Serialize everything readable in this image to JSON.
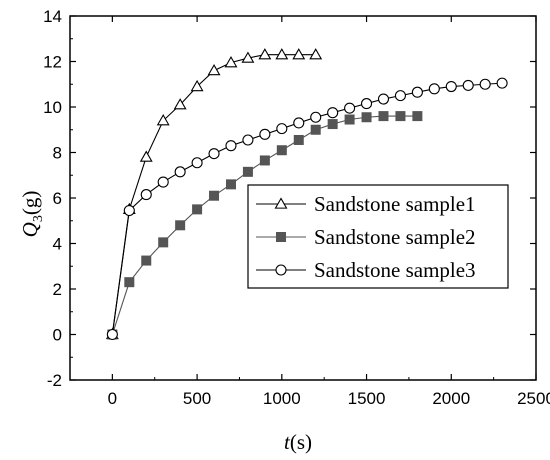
{
  "chart_data": {
    "type": "line",
    "title": "",
    "xlabel": {
      "var": "t",
      "unit": "(s)"
    },
    "ylabel": {
      "var": "Q",
      "sub": "3",
      "unit": "(g)"
    },
    "xlim": [
      -250,
      2500
    ],
    "ylim": [
      -2,
      14
    ],
    "xticks": [
      0,
      500,
      1000,
      1500,
      2000,
      2500
    ],
    "yticks": [
      -2,
      0,
      2,
      4,
      6,
      8,
      10,
      12,
      14
    ],
    "grid": false,
    "legend_position": "right",
    "series": [
      {
        "name": "Sandstone sample1",
        "marker": "open-triangle",
        "color": "#000000",
        "x": [
          0,
          100,
          200,
          300,
          400,
          500,
          600,
          700,
          800,
          900,
          1000,
          1100,
          1200
        ],
        "y": [
          0,
          5.5,
          7.8,
          9.4,
          10.1,
          10.9,
          11.6,
          11.95,
          12.15,
          12.3,
          12.3,
          12.3,
          12.3
        ]
      },
      {
        "name": "Sandstone sample2",
        "marker": "filled-square",
        "color": "#555555",
        "x": [
          0,
          100,
          200,
          300,
          400,
          500,
          600,
          700,
          800,
          900,
          1000,
          1100,
          1200,
          1300,
          1400,
          1500,
          1600,
          1700,
          1800
        ],
        "y": [
          0,
          2.3,
          3.25,
          4.05,
          4.8,
          5.5,
          6.1,
          6.6,
          7.15,
          7.65,
          8.1,
          8.55,
          9.0,
          9.25,
          9.45,
          9.55,
          9.6,
          9.6,
          9.6
        ]
      },
      {
        "name": "Sandstone sample3",
        "marker": "open-circle",
        "color": "#000000",
        "x": [
          0,
          100,
          200,
          300,
          400,
          500,
          600,
          700,
          800,
          900,
          1000,
          1100,
          1200,
          1300,
          1400,
          1500,
          1600,
          1700,
          1800,
          1900,
          2000,
          2100,
          2200,
          2300
        ],
        "y": [
          0,
          5.45,
          6.15,
          6.7,
          7.15,
          7.55,
          7.95,
          8.3,
          8.55,
          8.8,
          9.05,
          9.3,
          9.55,
          9.75,
          9.95,
          10.15,
          10.35,
          10.5,
          10.65,
          10.8,
          10.9,
          10.95,
          11.0,
          11.05
        ]
      }
    ]
  }
}
